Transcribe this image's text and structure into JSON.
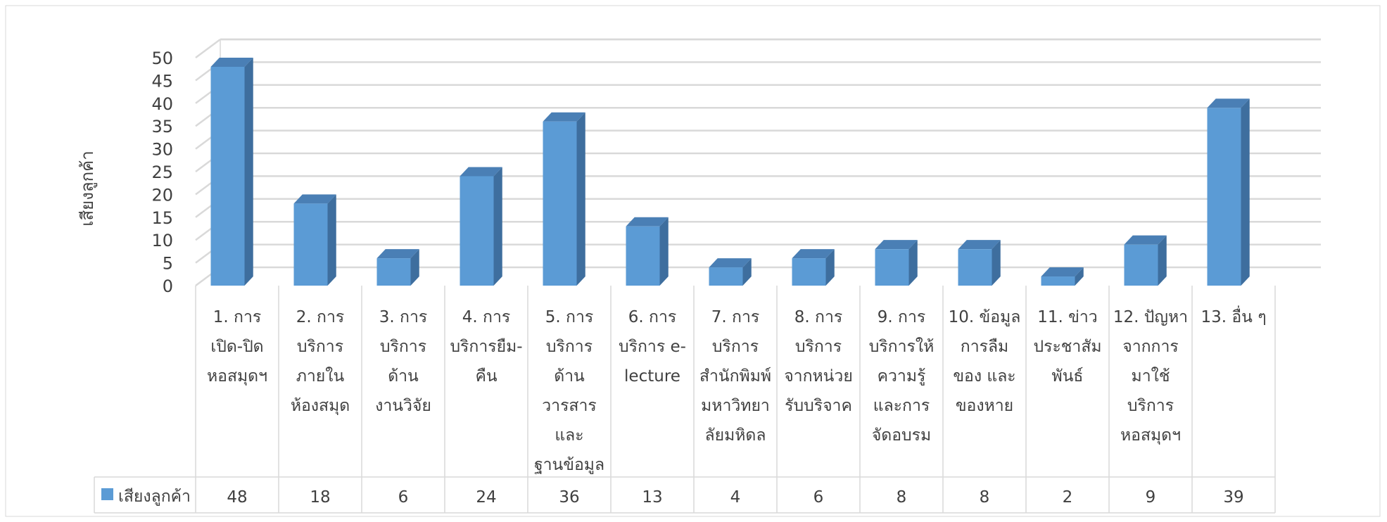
{
  "chart_data": {
    "type": "bar",
    "ylabel": "เสียงลูกค้า",
    "ylim": [
      0,
      50
    ],
    "yticks": [
      0,
      5,
      10,
      15,
      20,
      25,
      30,
      35,
      40,
      45,
      50
    ],
    "grid": true,
    "legend_position": "data-table-left",
    "categories": [
      [
        "1. การ",
        "เปิด-ปิด",
        "หอสมุดฯ"
      ],
      [
        "2. การ",
        "บริการ",
        "ภายใน",
        "ห้องสมุด"
      ],
      [
        "3. การ",
        "บริการ",
        "ด้าน",
        "งานวิจัย"
      ],
      [
        "4. การ",
        "บริการยืม-",
        "คืน"
      ],
      [
        "5. การ",
        "บริการ",
        "ด้าน",
        "วารสาร",
        "และ",
        "ฐานข้อมูล"
      ],
      [
        "6. การ",
        "บริการ e-",
        "lecture"
      ],
      [
        "7. การ",
        "บริการ",
        "สำนักพิมพ์",
        "มหาวิทยา",
        "ลัยมหิดล"
      ],
      [
        "8. การ",
        "บริการ",
        "จากหน่วย",
        "รับบริจาค"
      ],
      [
        "9. การ",
        "บริการให้",
        "ความรู้",
        "และการ",
        "จัดอบรม"
      ],
      [
        "10. ข้อมูล",
        "การลืม",
        "ของ และ",
        "ของหาย"
      ],
      [
        "11. ข่าว",
        "ประชาสัม",
        "พันธ์"
      ],
      [
        "12. ปัญหา",
        "จากการ",
        "มาใช้",
        "บริการ",
        "หอสมุดฯ"
      ],
      [
        "13. อื่น ๆ"
      ]
    ],
    "series": [
      {
        "name": "เสียงลูกค้า",
        "color": "#5B9BD5",
        "values": [
          48,
          18,
          6,
          24,
          36,
          13,
          4,
          6,
          8,
          8,
          2,
          9,
          39
        ]
      }
    ]
  }
}
